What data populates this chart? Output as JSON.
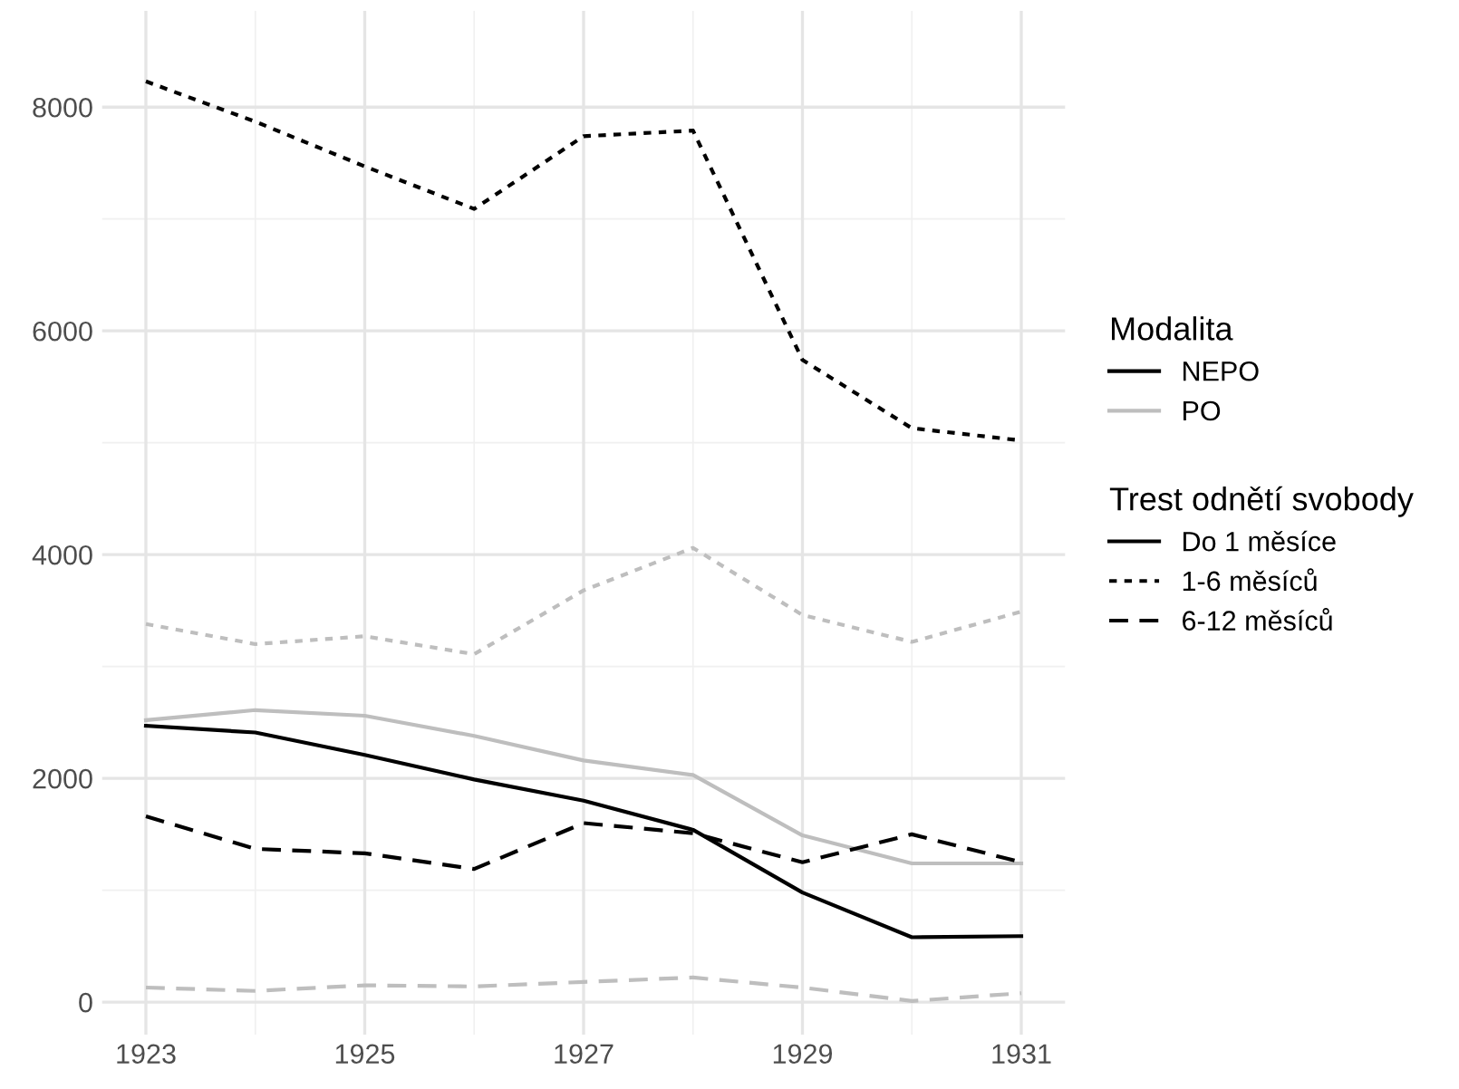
{
  "chart_data": {
    "type": "line",
    "annotations": [
      "Do 1 měsíce"
    ],
    "legend_title": [
      "Modalita",
      "Trest odnětí svobody"
    ],
    "x": [
      1923,
      1924,
      1925,
      1926,
      1927,
      1928,
      1929,
      1930,
      1931
    ],
    "series": [
      {
        "name": "NEPO",
        "color": "#000000",
        "line_style": "solid",
        "values": [
          2470,
          2410,
          2210,
          1990,
          1800,
          1540,
          980,
          580,
          590
        ]
      },
      {
        "name": "PO",
        "color": "#bebebe",
        "line_style": "solid",
        "values": [
          2520,
          2610,
          2560,
          2380,
          2160,
          2030,
          1490,
          1240,
          1240
        ]
      },
      {
        "name": "1-6 měsíců",
        "color": "#000000",
        "line_style": "dotted",
        "values": [
          8230,
          7870,
          7470,
          7090,
          7740,
          7790,
          5740,
          5130,
          5020
        ]
      },
      {
        "color": "#bebebe",
        "line_style": "dotted",
        "values": [
          3380,
          3200,
          3270,
          3110,
          3680,
          4060,
          3460,
          3220,
          3490
        ]
      },
      {
        "name": "6-12 měsíců",
        "color": "#000000",
        "line_style": "dashed",
        "values": [
          1660,
          1370,
          1330,
          1190,
          1600,
          1510,
          1250,
          1500,
          1250
        ]
      },
      {
        "color": "#bebebe",
        "line_style": "dashed",
        "values": [
          130,
          100,
          150,
          140,
          180,
          220,
          130,
          10,
          80
        ]
      }
    ],
    "xlim": [
      1922.6,
      1931.4
    ],
    "xticks": [
      1923,
      1925,
      1927,
      1929,
      1931
    ],
    "ylim": [
      -290,
      8860
    ],
    "yticks": [
      0,
      2000,
      4000,
      6000,
      8000
    ],
    "grid": true,
    "legend": "right",
    "marker": "none"
  }
}
